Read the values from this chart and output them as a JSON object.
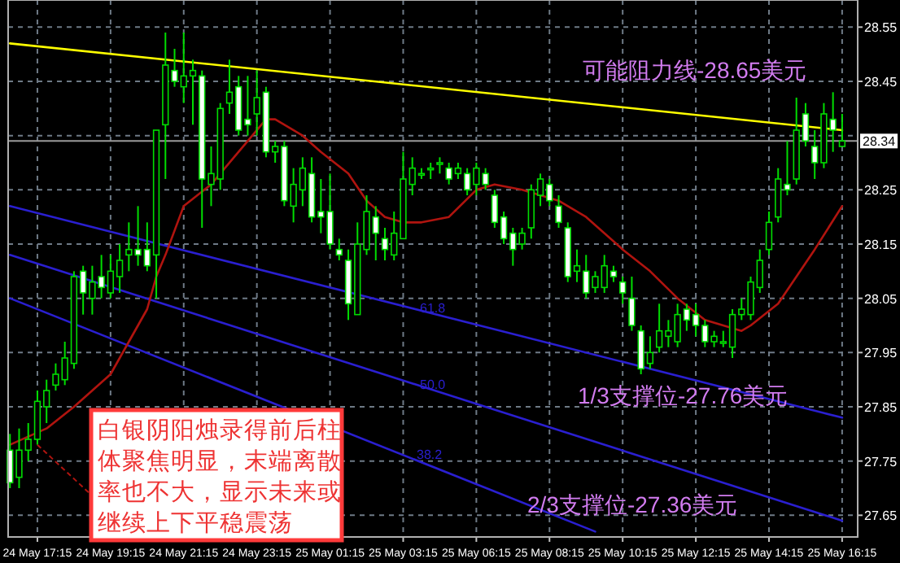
{
  "chart_data": {
    "type": "candlestick",
    "color": "#00dd00",
    "categories": [
      null,
      null,
      null,
      "24 May 17:15",
      null,
      null,
      null,
      null,
      null,
      null,
      null,
      "24 May 19:15",
      null,
      null,
      null,
      null,
      null,
      null,
      null,
      "24 May 21:15",
      null,
      null,
      null,
      null,
      null,
      null,
      null,
      "24 May 23:15",
      null,
      null,
      null,
      null,
      null,
      null,
      null,
      "25 May 01:15",
      null,
      null,
      null,
      null,
      null,
      null,
      null,
      "25 May 03:15",
      null,
      null,
      null,
      null,
      null,
      null,
      null,
      "25 May 06:15",
      null,
      null,
      null,
      null,
      null,
      null,
      null,
      "25 May 08:15",
      null,
      null,
      null,
      null,
      null,
      null,
      null,
      "25 May 10:15",
      null,
      null,
      null,
      null,
      null,
      null,
      null,
      "25 May 12:15",
      null,
      null,
      null,
      null,
      null,
      null,
      null,
      "25 May 14:15",
      null,
      null,
      null,
      null,
      null,
      null,
      null,
      "25 May 16:15"
    ],
    "ohlc": [
      [
        27.77,
        27.8,
        27.7,
        27.71
      ],
      [
        27.72,
        27.81,
        27.7,
        27.77
      ],
      [
        27.77,
        27.82,
        27.75,
        27.79
      ],
      [
        27.79,
        27.88,
        27.78,
        27.86
      ],
      [
        27.85,
        27.9,
        27.82,
        27.88
      ],
      [
        27.89,
        27.93,
        27.88,
        27.91
      ],
      [
        27.9,
        27.97,
        27.89,
        27.94
      ],
      [
        27.93,
        28.1,
        27.92,
        28.09
      ],
      [
        28.1,
        28.11,
        28.02,
        28.06
      ],
      [
        28.05,
        28.11,
        28.02,
        28.08
      ],
      [
        28.09,
        28.13,
        28.05,
        28.07
      ],
      [
        28.06,
        28.13,
        28.05,
        28.1
      ],
      [
        28.09,
        28.15,
        28.06,
        28.12
      ],
      [
        28.13,
        28.19,
        28.1,
        28.14
      ],
      [
        28.14,
        28.22,
        28.11,
        28.13
      ],
      [
        28.14,
        28.19,
        28.1,
        28.11
      ],
      [
        28.13,
        28.36,
        28.05,
        28.36
      ],
      [
        28.37,
        28.54,
        28.27,
        28.48
      ],
      [
        28.47,
        28.51,
        28.44,
        28.45
      ],
      [
        28.44,
        28.54,
        28.41,
        28.46
      ],
      [
        28.46,
        28.49,
        28.37,
        28.47
      ],
      [
        28.46,
        28.47,
        28.18,
        28.27
      ],
      [
        28.26,
        28.33,
        28.22,
        28.28
      ],
      [
        28.27,
        28.41,
        28.25,
        28.4
      ],
      [
        28.41,
        28.49,
        28.39,
        28.43
      ],
      [
        28.44,
        28.46,
        28.35,
        28.36
      ],
      [
        28.38,
        28.46,
        28.35,
        28.37
      ],
      [
        28.39,
        28.47,
        28.35,
        28.42
      ],
      [
        28.43,
        28.44,
        28.31,
        28.32
      ],
      [
        28.32,
        28.34,
        28.3,
        28.33
      ],
      [
        28.33,
        28.34,
        28.22,
        28.23
      ],
      [
        28.22,
        28.29,
        28.19,
        28.26
      ],
      [
        28.25,
        28.31,
        28.22,
        28.29
      ],
      [
        28.28,
        28.31,
        28.19,
        28.2
      ],
      [
        28.21,
        28.27,
        28.17,
        28.2
      ],
      [
        28.21,
        28.28,
        28.14,
        28.15
      ],
      [
        28.14,
        28.16,
        28.12,
        28.13
      ],
      [
        28.12,
        28.14,
        28.01,
        28.04
      ],
      [
        28.02,
        28.19,
        28.02,
        28.15
      ],
      [
        28.14,
        28.24,
        28.13,
        28.21
      ],
      [
        28.2,
        28.22,
        28.12,
        28.17
      ],
      [
        28.16,
        28.18,
        28.12,
        28.14
      ],
      [
        28.13,
        28.21,
        28.12,
        28.17
      ],
      [
        28.16,
        28.32,
        28.16,
        28.27
      ],
      [
        28.26,
        28.31,
        28.24,
        28.29
      ],
      [
        28.28,
        28.29,
        28.27,
        28.28
      ],
      [
        28.29,
        28.3,
        28.27,
        28.29
      ],
      [
        28.3,
        28.31,
        28.28,
        28.3
      ],
      [
        28.29,
        28.3,
        28.26,
        28.27
      ],
      [
        28.28,
        28.3,
        28.27,
        28.29
      ],
      [
        28.28,
        28.29,
        28.24,
        28.25
      ],
      [
        28.26,
        28.3,
        28.24,
        28.29
      ],
      [
        28.28,
        28.29,
        28.25,
        28.26
      ],
      [
        28.24,
        28.25,
        28.18,
        28.19
      ],
      [
        28.2,
        28.21,
        28.15,
        28.16
      ],
      [
        28.17,
        28.18,
        28.11,
        28.14
      ],
      [
        28.15,
        28.18,
        28.14,
        28.17
      ],
      [
        28.18,
        28.26,
        28.16,
        28.25
      ],
      [
        28.24,
        28.28,
        28.22,
        28.27
      ],
      [
        28.26,
        28.27,
        28.22,
        28.23
      ],
      [
        28.22,
        28.24,
        28.18,
        28.19
      ],
      [
        28.18,
        28.19,
        28.08,
        28.09
      ],
      [
        28.1,
        28.14,
        28.08,
        28.11
      ],
      [
        28.1,
        28.13,
        28.05,
        28.06
      ],
      [
        28.07,
        28.1,
        28.06,
        28.09
      ],
      [
        28.07,
        28.13,
        28.06,
        28.11
      ],
      [
        28.1,
        28.11,
        28.08,
        28.09
      ],
      [
        28.08,
        28.09,
        28.04,
        28.06
      ],
      [
        28.05,
        28.09,
        27.99,
        28.0
      ],
      [
        27.99,
        28.0,
        27.91,
        27.92
      ],
      [
        27.93,
        27.98,
        27.92,
        27.95
      ],
      [
        27.96,
        28.04,
        27.95,
        27.99
      ],
      [
        27.98,
        28.01,
        27.96,
        27.99
      ],
      [
        27.97,
        28.04,
        27.96,
        28.02
      ],
      [
        28.03,
        28.04,
        27.99,
        28.01
      ],
      [
        28.02,
        28.04,
        27.98,
        28.0
      ],
      [
        28.0,
        28.01,
        27.96,
        27.97
      ],
      [
        27.97,
        27.99,
        27.96,
        27.98
      ],
      [
        27.97,
        27.99,
        27.96,
        27.97
      ],
      [
        27.96,
        28.03,
        27.94,
        28.02
      ],
      [
        28.02,
        28.05,
        28.01,
        28.03
      ],
      [
        28.02,
        28.09,
        28.01,
        28.08
      ],
      [
        28.07,
        28.14,
        28.06,
        28.12
      ],
      [
        28.14,
        28.21,
        28.13,
        28.19
      ],
      [
        28.2,
        28.29,
        28.19,
        28.27
      ],
      [
        28.26,
        28.34,
        28.24,
        28.25
      ],
      [
        28.27,
        28.42,
        28.26,
        28.36
      ],
      [
        28.39,
        28.41,
        28.33,
        28.34
      ],
      [
        28.33,
        28.36,
        28.27,
        28.3
      ],
      [
        28.3,
        28.41,
        28.29,
        28.39
      ],
      [
        28.38,
        28.43,
        28.32,
        28.36
      ],
      [
        28.33,
        28.39,
        28.33,
        28.34
      ]
    ],
    "series": [
      {
        "type": "line",
        "color": "#ffff00",
        "values": [
          28.52,
          null,
          null,
          null,
          null,
          null,
          null,
          null,
          null,
          null,
          null,
          null,
          null,
          null,
          null,
          null,
          null,
          null,
          null,
          null,
          null,
          null,
          null,
          null,
          null,
          null,
          null,
          null,
          null,
          null,
          null,
          null,
          null,
          null,
          null,
          null,
          null,
          null,
          null,
          null,
          null,
          null,
          null,
          null,
          null,
          null,
          null,
          null,
          null,
          null,
          null,
          null,
          null,
          null,
          null,
          null,
          null,
          null,
          null,
          null,
          null,
          null,
          null,
          null,
          null,
          null,
          null,
          null,
          null,
          null,
          null,
          null,
          null,
          null,
          null,
          null,
          null,
          null,
          null,
          null,
          null,
          null,
          null,
          null,
          null,
          null,
          null,
          null,
          null,
          null,
          null,
          28.36
        ]
      },
      {
        "type": "line",
        "color": "#2a1fd0",
        "values": [
          28.22,
          null,
          null,
          null,
          null,
          null,
          null,
          null,
          null,
          null,
          null,
          null,
          null,
          null,
          null,
          null,
          null,
          null,
          null,
          null,
          null,
          null,
          null,
          null,
          null,
          null,
          null,
          null,
          null,
          null,
          null,
          null,
          null,
          null,
          null,
          null,
          null,
          null,
          null,
          null,
          null,
          null,
          null,
          null,
          null,
          null,
          null,
          null,
          null,
          null,
          null,
          null,
          null,
          null,
          null,
          null,
          null,
          null,
          null,
          null,
          null,
          null,
          null,
          null,
          null,
          null,
          null,
          null,
          null,
          null,
          null,
          null,
          null,
          null,
          null,
          null,
          null,
          null,
          null,
          null,
          null,
          null,
          null,
          null,
          null,
          null,
          null,
          null,
          null,
          null,
          null,
          27.83
        ]
      },
      {
        "type": "line",
        "color": "#2a1fd0",
        "values": [
          28.13,
          null,
          null,
          null,
          null,
          null,
          null,
          null,
          null,
          null,
          null,
          null,
          null,
          null,
          null,
          null,
          null,
          null,
          null,
          null,
          null,
          null,
          null,
          null,
          null,
          null,
          null,
          null,
          null,
          null,
          null,
          null,
          null,
          null,
          null,
          null,
          null,
          null,
          null,
          null,
          null,
          null,
          null,
          null,
          null,
          null,
          null,
          null,
          null,
          null,
          null,
          null,
          null,
          null,
          null,
          null,
          null,
          null,
          null,
          null,
          null,
          null,
          null,
          null,
          null,
          null,
          null,
          null,
          null,
          null,
          null,
          null,
          null,
          null,
          null,
          null,
          null,
          null,
          null,
          null,
          null,
          null,
          null,
          null,
          null,
          null,
          null,
          null,
          null,
          null,
          null,
          27.64
        ]
      },
      {
        "type": "line",
        "color": "#2a1fd0",
        "values": [
          28.05,
          null,
          null,
          null,
          null,
          null,
          null,
          null,
          null,
          null,
          null,
          null,
          null,
          null,
          null,
          null,
          null,
          null,
          null,
          null,
          null,
          null,
          null,
          null,
          null,
          null,
          null,
          null,
          null,
          null,
          null,
          null,
          null,
          null,
          null,
          null,
          null,
          null,
          null,
          null,
          null,
          null,
          null,
          null,
          null,
          null,
          null,
          null,
          null,
          null,
          null,
          null,
          null,
          null,
          null,
          null,
          null,
          null,
          null,
          null,
          null,
          null,
          null,
          null,
          27.62,
          null,
          null,
          null,
          null,
          null,
          null,
          null,
          null,
          null,
          null,
          null,
          null,
          null,
          null,
          null,
          null,
          null,
          null,
          null,
          null,
          null,
          null,
          null,
          null,
          null,
          null,
          null
        ]
      },
      {
        "type": "line",
        "color": "#b0140f",
        "values": [
          27.78,
          null,
          null,
          null,
          27.81,
          null,
          null,
          27.85,
          null,
          null,
          null,
          27.91,
          null,
          27.97,
          null,
          28.03,
          28.09,
          28.13,
          null,
          28.22,
          null,
          null,
          28.26,
          null,
          null,
          28.32,
          null,
          null,
          28.38,
          28.38,
          null,
          null,
          28.35,
          null,
          28.32,
          null,
          null,
          28.28,
          null,
          28.23,
          null,
          28.2,
          null,
          28.19,
          null,
          28.19,
          null,
          null,
          28.2,
          null,
          null,
          28.25,
          null,
          28.26,
          null,
          null,
          28.25,
          null,
          28.24,
          null,
          28.23,
          null,
          null,
          28.2,
          null,
          null,
          null,
          28.14,
          null,
          null,
          28.1,
          null,
          null,
          28.05,
          null,
          null,
          28.01,
          null,
          null,
          null,
          27.99,
          28.0,
          null,
          null,
          28.04,
          null,
          null,
          null,
          28.14,
          null,
          null,
          28.22
        ]
      }
    ],
    "ylim": [
      27.61,
      28.6
    ],
    "yticks": [
      28.55,
      28.45,
      {
        "value": 28.35,
        "label": null
      },
      28.25,
      28.15,
      28.05,
      27.95,
      27.85,
      27.75,
      27.65
    ],
    "ref_lines": [
      {
        "axis": "y",
        "value": 28.34,
        "label": "28.34",
        "color": "#9a9a9a"
      }
    ],
    "grid": true,
    "annotations": [
      "可能阻力线-28.65美元",
      "1/3支撑位-27.76美元",
      "2/3支撑位-27.36美元",
      {
        "text": "白银阴阳烛录得前后柱体聚焦明显，末端离散率也不大，显示未来或继续上下平稳震荡",
        "x": "24 May 17:15",
        "y": 27.78
      },
      "61.8",
      "50.0",
      "38.2"
    ]
  }
}
